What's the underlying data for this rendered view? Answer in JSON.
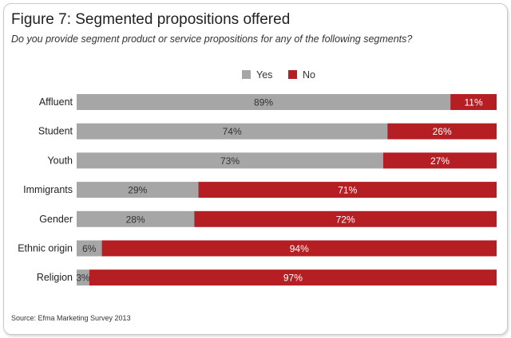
{
  "title": "Figure 7: Segmented propositions offered",
  "subtitle": "Do you provide segment product or service propositions for any of the following segments?",
  "source": "Source: Efma Marketing Survey 2013",
  "colors": {
    "yes": "#a6a6a6",
    "no": "#b51f24"
  },
  "chart_data": {
    "type": "bar",
    "orientation": "horizontal",
    "stacked": true,
    "title": "Figure 7: Segmented propositions offered",
    "categories": [
      "Affluent",
      "Student",
      "Youth",
      "Immigrants",
      "Gender",
      "Ethnic origin",
      "Religion"
    ],
    "series": [
      {
        "name": "Yes",
        "values": [
          89,
          74,
          73,
          29,
          28,
          6,
          3
        ],
        "labels": [
          "89%",
          "74%",
          "73%",
          "29%",
          "28%",
          "6%",
          "3%"
        ]
      },
      {
        "name": "No",
        "values": [
          11,
          26,
          27,
          71,
          72,
          94,
          97
        ],
        "labels": [
          "11%",
          "26%",
          "27%",
          "71%",
          "72%",
          "94%",
          "97%"
        ]
      }
    ],
    "xlim": [
      0,
      100
    ],
    "legend": "top-center",
    "grid": false
  }
}
